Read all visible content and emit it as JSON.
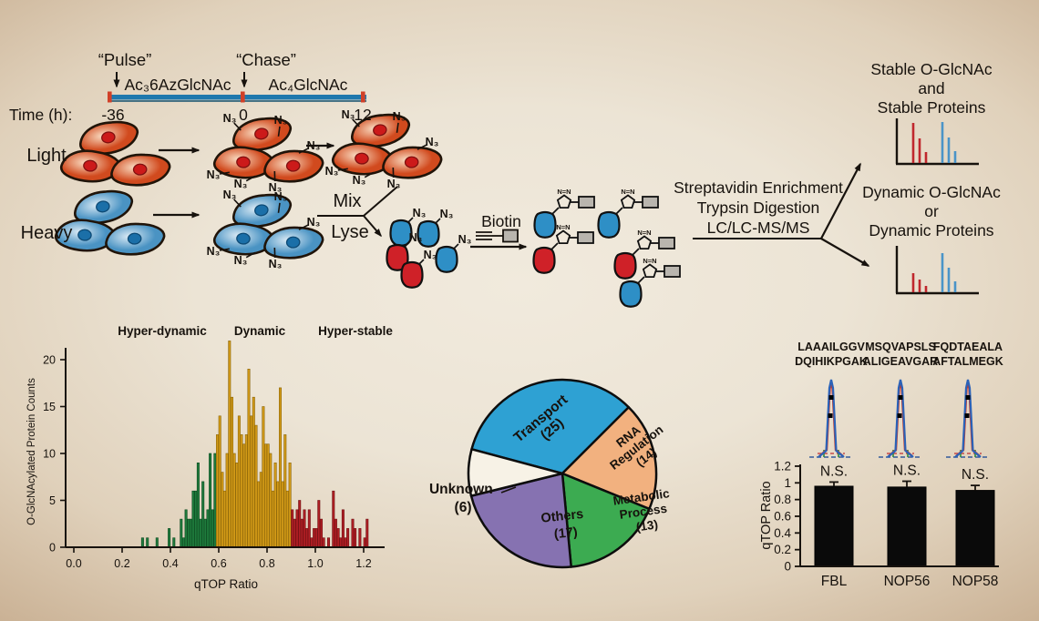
{
  "workflow": {
    "pulse": "“Pulse”",
    "chase": "“Chase”",
    "reagent_pulse": "Ac₃6AzGlcNAc",
    "reagent_chase": "Ac₄GlcNAc",
    "time_label": "Time (h):",
    "time_start": "-36",
    "time_mid": "0",
    "time_end": "12",
    "light": "Light",
    "heavy": "Heavy",
    "mix": "Mix",
    "lyse": "Lyse",
    "biotin": "Biotin",
    "n3": "N₃",
    "triazole": "N=N",
    "process_lines": [
      "Streptavidin Enrichment",
      "Trypsin Digestion",
      "LC/LC-MS/MS"
    ],
    "outcome_stable": [
      "Stable O-GlcNAc",
      "and",
      "Stable Proteins"
    ],
    "outcome_dynamic": [
      "Dynamic O-GlcNAc",
      "or",
      "Dynamic Proteins"
    ]
  },
  "colors": {
    "light_label": "#bd3322",
    "heavy_label": "#2e7fb5",
    "timeline_bar": "#1f78ad",
    "timeline_tick": "#d14028",
    "cell_red_inner": "#f9dcc2",
    "cell_red_outer": "#d14a1e",
    "nucleus_red": "#cc1a1a",
    "cell_blue_inner": "#dcebf5",
    "cell_blue_outer": "#4a93c3",
    "nucleus_blue": "#1b6fa8",
    "protein_blue": "#2e8fc6",
    "protein_red": "#cf2128",
    "biotin_gray": "#b9b5ae",
    "spectrum_red": "#c0272d",
    "spectrum_blue": "#4a94c8",
    "bar_black": "#0a0a0a"
  },
  "chart_data": [
    {
      "type": "bar",
      "name": "qtop-histogram",
      "xlabel": "qTOP Ratio",
      "ylabel": "O-GlcNAcylated Protein Counts",
      "xlim": [
        0,
        1.25
      ],
      "ylim": [
        0,
        22
      ],
      "bin_width": 0.01,
      "x_ticks": [
        0.0,
        0.2,
        0.4,
        0.6,
        0.8,
        1.0,
        1.2
      ],
      "y_ticks": [
        0,
        5,
        10,
        15,
        20
      ],
      "regions": [
        {
          "label": "Hyper-dynamic",
          "color": "#1e7b3c",
          "stroke": "#0d4a21",
          "range": [
            0,
            0.585
          ]
        },
        {
          "label": "Dynamic",
          "color": "#d29a17",
          "stroke": "#8a6408",
          "range": [
            0.585,
            0.895
          ]
        },
        {
          "label": "Hyper-stable",
          "color": "#b01e24",
          "stroke": "#6d0f13",
          "range": [
            0.895,
            1.25
          ]
        }
      ],
      "bars": [
        [
          0.28,
          1
        ],
        [
          0.3,
          1
        ],
        [
          0.34,
          1
        ],
        [
          0.39,
          2
        ],
        [
          0.41,
          1
        ],
        [
          0.44,
          3
        ],
        [
          0.45,
          1
        ],
        [
          0.46,
          4
        ],
        [
          0.47,
          3
        ],
        [
          0.48,
          3
        ],
        [
          0.49,
          6
        ],
        [
          0.5,
          6
        ],
        [
          0.51,
          9
        ],
        [
          0.52,
          3
        ],
        [
          0.53,
          7
        ],
        [
          0.54,
          3
        ],
        [
          0.55,
          4
        ],
        [
          0.56,
          10
        ],
        [
          0.57,
          4
        ],
        [
          0.58,
          10
        ],
        [
          0.59,
          12
        ],
        [
          0.6,
          14
        ],
        [
          0.61,
          8
        ],
        [
          0.62,
          6
        ],
        [
          0.63,
          10
        ],
        [
          0.64,
          22
        ],
        [
          0.65,
          16
        ],
        [
          0.66,
          10
        ],
        [
          0.67,
          9
        ],
        [
          0.68,
          14
        ],
        [
          0.69,
          12
        ],
        [
          0.7,
          11
        ],
        [
          0.71,
          12
        ],
        [
          0.72,
          19
        ],
        [
          0.73,
          14
        ],
        [
          0.74,
          16
        ],
        [
          0.75,
          13
        ],
        [
          0.76,
          7
        ],
        [
          0.77,
          8
        ],
        [
          0.78,
          15
        ],
        [
          0.79,
          11
        ],
        [
          0.8,
          11
        ],
        [
          0.81,
          10
        ],
        [
          0.82,
          6
        ],
        [
          0.83,
          9
        ],
        [
          0.84,
          7
        ],
        [
          0.85,
          17
        ],
        [
          0.86,
          7
        ],
        [
          0.87,
          12
        ],
        [
          0.88,
          6
        ],
        [
          0.89,
          9
        ],
        [
          0.9,
          4
        ],
        [
          0.91,
          3
        ],
        [
          0.92,
          4
        ],
        [
          0.93,
          5
        ],
        [
          0.94,
          3
        ],
        [
          0.95,
          4
        ],
        [
          0.96,
          2
        ],
        [
          0.97,
          4
        ],
        [
          0.98,
          1
        ],
        [
          0.99,
          2
        ],
        [
          1.0,
          2
        ],
        [
          1.01,
          5
        ],
        [
          1.02,
          3
        ],
        [
          1.03,
          1
        ],
        [
          1.05,
          1
        ],
        [
          1.07,
          6
        ],
        [
          1.08,
          3
        ],
        [
          1.09,
          2
        ],
        [
          1.1,
          1
        ],
        [
          1.11,
          4
        ],
        [
          1.12,
          1
        ],
        [
          1.13,
          2
        ],
        [
          1.15,
          3
        ],
        [
          1.16,
          2
        ],
        [
          1.18,
          2
        ],
        [
          1.2,
          1
        ],
        [
          1.21,
          3
        ]
      ]
    },
    {
      "type": "pie",
      "name": "functional-categories",
      "start_angle_deg": -75,
      "slices": [
        {
          "label": "Transport",
          "count": 25,
          "color": "#2ea1d3",
          "lines": [
            "Transport",
            "(25)"
          ]
        },
        {
          "label": "RNA Regulation",
          "count": 14,
          "color": "#f2b17f",
          "lines": [
            "RNA",
            "Regulation",
            "(14)"
          ]
        },
        {
          "label": "Metabolic Process",
          "count": 13,
          "color": "#3cab51",
          "lines": [
            "Metabolic",
            "Process",
            "(13)"
          ]
        },
        {
          "label": "Others",
          "count": 17,
          "color": "#8672b1",
          "lines": [
            "Others",
            "(17)"
          ]
        },
        {
          "label": "Unknown",
          "count": 6,
          "color": "#f7f2e6",
          "lines": [
            "Unknown",
            "(6)"
          ]
        }
      ]
    },
    {
      "type": "bar",
      "name": "qtop-ratio-bars",
      "ylabel": "qTOP Ratio",
      "ylim": [
        0,
        1.2
      ],
      "y_ticks": [
        "0",
        "0.2",
        "0.4",
        "0.6",
        "0.8",
        "1",
        "1.2"
      ],
      "categories": [
        "FBL",
        "NOP56",
        "NOP58"
      ],
      "values": [
        0.96,
        0.95,
        0.91
      ],
      "errors": [
        0.05,
        0.07,
        0.06
      ],
      "significance": [
        "N.S.",
        "N.S.",
        "N.S."
      ],
      "peptides": [
        [
          "LAAAILGGV",
          "DQIHIKPGAK"
        ],
        [
          "MSQVAPSLS",
          "ALIGEAVGAR"
        ],
        [
          "FQDTAEALA",
          "AFTALMEGK"
        ]
      ]
    },
    {
      "type": "schematic-spectra",
      "name": "ms-peak-schematics",
      "stable": {
        "red": [
          45,
          28,
          13
        ],
        "blue": [
          46,
          29,
          14
        ]
      },
      "dynamic": {
        "red": [
          22,
          15,
          8
        ],
        "blue": [
          44,
          28,
          13
        ]
      }
    }
  ]
}
